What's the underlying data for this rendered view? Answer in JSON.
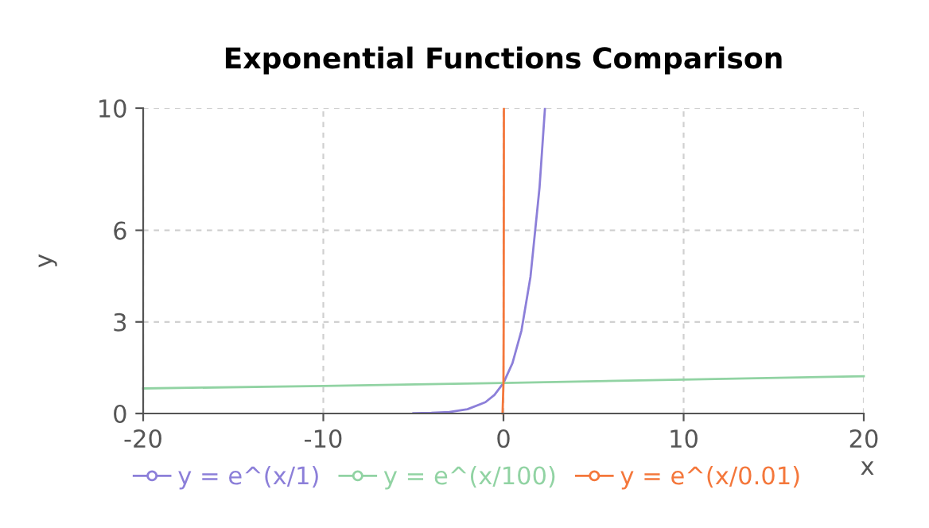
{
  "chart_data": {
    "type": "line",
    "title": "Exponential Functions Comparison",
    "xlabel": "x",
    "ylabel": "y",
    "xlim": [
      -20,
      20
    ],
    "ylim": [
      0,
      10
    ],
    "xticks": [
      -20,
      -10,
      0,
      10,
      20
    ],
    "yticks": [
      0,
      3,
      6,
      10
    ],
    "grid": true,
    "legend": "bottom",
    "line_style": "solid",
    "series": [
      {
        "name": "y = e^(x/1)",
        "color": "#8c7fd9",
        "x": [
          -5,
          -4,
          -3,
          -2,
          -1,
          -0.5,
          0,
          0.5,
          1,
          1.5,
          2,
          2.3
        ],
        "values": [
          0.01,
          0.02,
          0.05,
          0.14,
          0.37,
          0.61,
          1,
          1.65,
          2.72,
          4.48,
          7.39,
          9.97
        ]
      },
      {
        "name": "y = e^(x/100)",
        "color": "#91d3a3",
        "x": [
          -20,
          -10,
          0,
          10,
          20
        ],
        "values": [
          0.82,
          0.9,
          1,
          1.11,
          1.22
        ]
      },
      {
        "name": "y = e^(x/0.01)",
        "color": "#f4773b",
        "x": [
          -0.05,
          0,
          0.01,
          0.02,
          0.023
        ],
        "values": [
          0,
          1,
          2.72,
          7.39,
          9.97
        ]
      }
    ]
  }
}
